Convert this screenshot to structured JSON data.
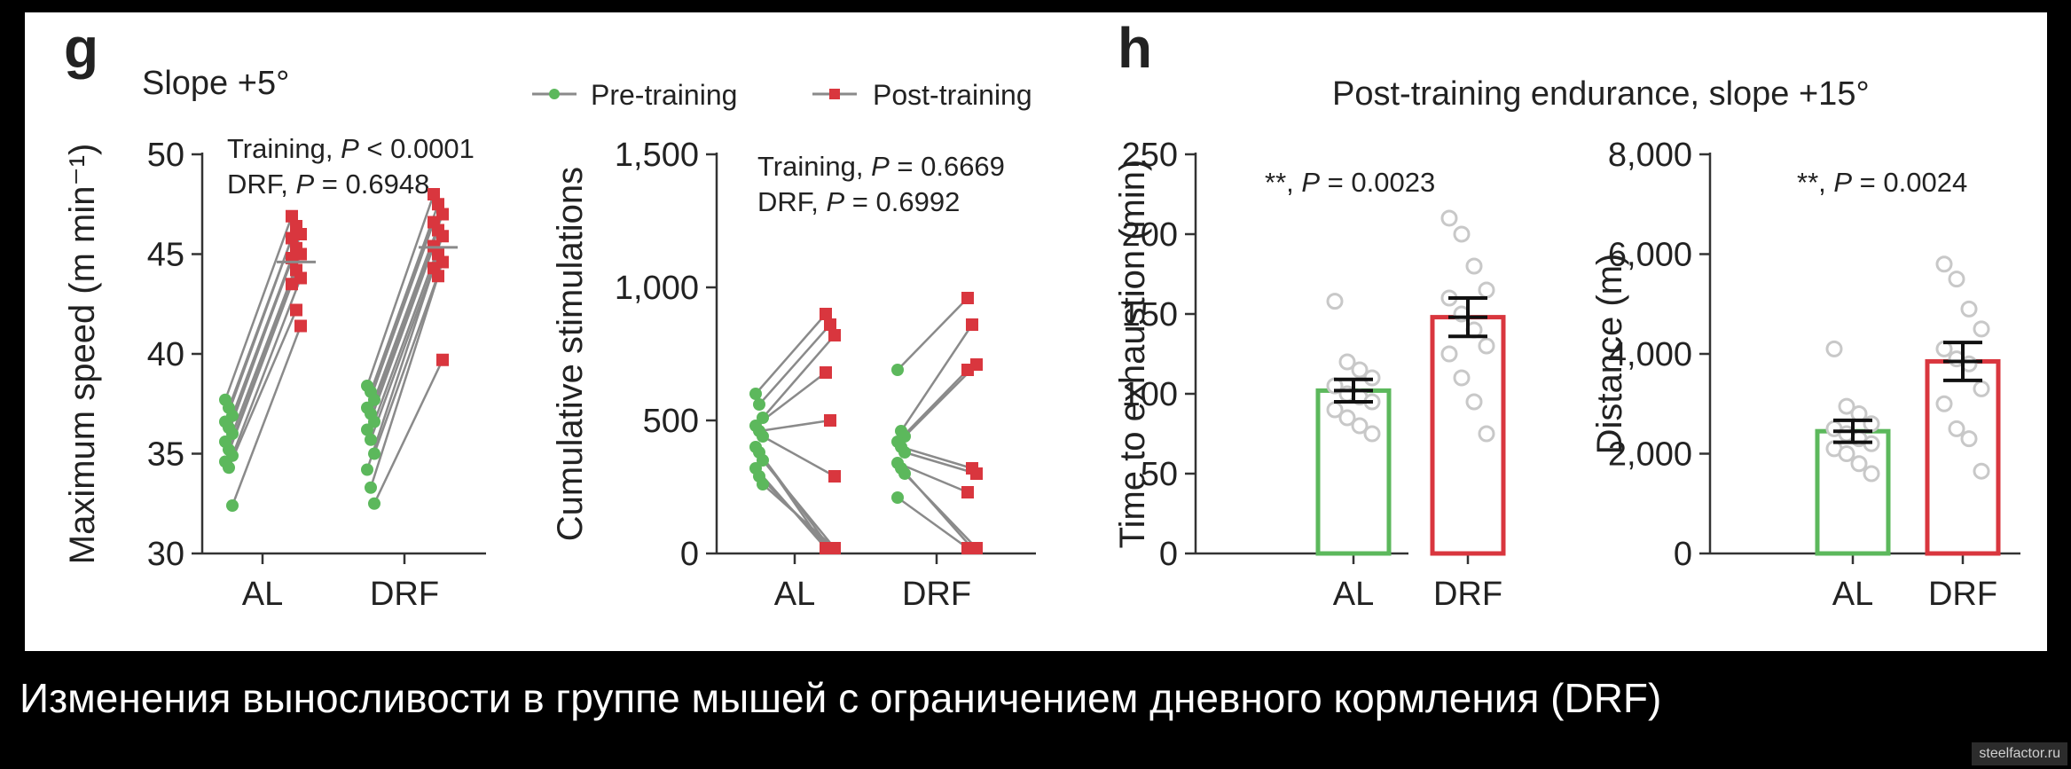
{
  "figure": {
    "panel_g_label": "g",
    "panel_h_label": "h",
    "g_title": "Slope +5°",
    "h_title": "Post-training endurance, slope +15°",
    "legend": {
      "pre": "Pre-training",
      "post": "Post-training"
    }
  },
  "colors": {
    "pre": "#5cb85c",
    "post": "#d9363e",
    "line": "#8a8a8a",
    "dot": "#c8c8c8",
    "axis": "#333333"
  },
  "caption": "Изменения выносливости в группе мышей с ограничением дневного кормления (DRF)",
  "watermark": "steelfactor.ru",
  "chart_data": [
    {
      "type": "scatter",
      "subtype": "paired",
      "panel": "g",
      "title": "Slope +5°",
      "ylabel": "Maximum speed (m min⁻¹)",
      "ylim": [
        30,
        50
      ],
      "yticks": [
        "30",
        "35",
        "40",
        "45",
        "50"
      ],
      "categories": [
        "AL",
        "DRF"
      ],
      "annotations": [
        "Training, P < 0.0001",
        "DRF, P = 0.6948"
      ],
      "series": [
        {
          "name": "Pre-training",
          "group": "AL",
          "values": [
            37.7,
            37.3,
            36.9,
            36.6,
            36.3,
            36.0,
            35.6,
            35.2,
            34.9,
            34.6,
            34.3,
            32.4
          ]
        },
        {
          "name": "Post-training",
          "group": "AL",
          "values": [
            46.9,
            46.4,
            46.0,
            45.8,
            45.3,
            45.0,
            44.8,
            44.2,
            43.8,
            43.5,
            42.2,
            41.4
          ]
        },
        {
          "name": "Pre-training",
          "group": "DRF",
          "values": [
            38.4,
            38.1,
            37.7,
            37.3,
            37.0,
            36.6,
            36.2,
            35.7,
            35.0,
            34.2,
            33.3,
            32.5
          ]
        },
        {
          "name": "Post-training",
          "group": "DRF",
          "values": [
            48.0,
            47.5,
            47.0,
            46.6,
            46.2,
            45.9,
            45.4,
            45.0,
            44.6,
            44.3,
            43.9,
            39.7
          ]
        }
      ]
    },
    {
      "type": "scatter",
      "subtype": "paired",
      "panel": "g",
      "ylabel": "Cumulative stimulations",
      "ylim": [
        0,
        1500
      ],
      "yticks": [
        "0",
        "500",
        "1,000",
        "1,500"
      ],
      "categories": [
        "AL",
        "DRF"
      ],
      "annotations": [
        "Training, P = 0.6669",
        "DRF, P = 0.6992"
      ],
      "series": [
        {
          "name": "Pre-training",
          "group": "AL",
          "values": [
            600,
            560,
            510,
            480,
            460,
            440,
            400,
            380,
            350,
            320,
            290,
            260
          ]
        },
        {
          "name": "Post-training",
          "group": "AL",
          "values": [
            900,
            860,
            820,
            680,
            500,
            290,
            20,
            20,
            20,
            20,
            20,
            20
          ]
        },
        {
          "name": "Pre-training",
          "group": "DRF",
          "values": [
            690,
            460,
            440,
            420,
            400,
            380,
            340,
            320,
            300,
            210
          ]
        },
        {
          "name": "Post-training",
          "group": "DRF",
          "values": [
            960,
            860,
            710,
            690,
            320,
            300,
            230,
            20,
            20,
            20
          ]
        }
      ]
    },
    {
      "type": "bar",
      "panel": "h",
      "ylabel": "Time to exhaustion (min)",
      "ylim": [
        0,
        250
      ],
      "yticks": [
        "0",
        "50",
        "100",
        "150",
        "200",
        "250"
      ],
      "categories": [
        "AL",
        "DRF"
      ],
      "values": [
        102,
        148
      ],
      "errors": [
        7,
        12
      ],
      "points": [
        [
          158,
          120,
          115,
          110,
          105,
          100,
          98,
          95,
          90,
          85,
          80,
          75
        ],
        [
          210,
          200,
          180,
          165,
          160,
          150,
          140,
          130,
          125,
          110,
          95,
          75
        ]
      ],
      "annotation": "**, P = 0.0023"
    },
    {
      "type": "bar",
      "panel": "h",
      "ylabel": "Distance (m)",
      "ylim": [
        0,
        8000
      ],
      "yticks": [
        "0",
        "2,000",
        "4,000",
        "6,000",
        "8,000"
      ],
      "categories": [
        "AL",
        "DRF"
      ],
      "values": [
        2450,
        3850
      ],
      "errors": [
        220,
        380
      ],
      "points": [
        [
          4100,
          2950,
          2800,
          2600,
          2500,
          2400,
          2300,
          2200,
          2100,
          2000,
          1800,
          1600
        ],
        [
          5800,
          5500,
          4900,
          4500,
          4100,
          3900,
          3800,
          3300,
          3000,
          2500,
          2300,
          1650
        ]
      ],
      "annotation": "**, P = 0.0024"
    }
  ]
}
